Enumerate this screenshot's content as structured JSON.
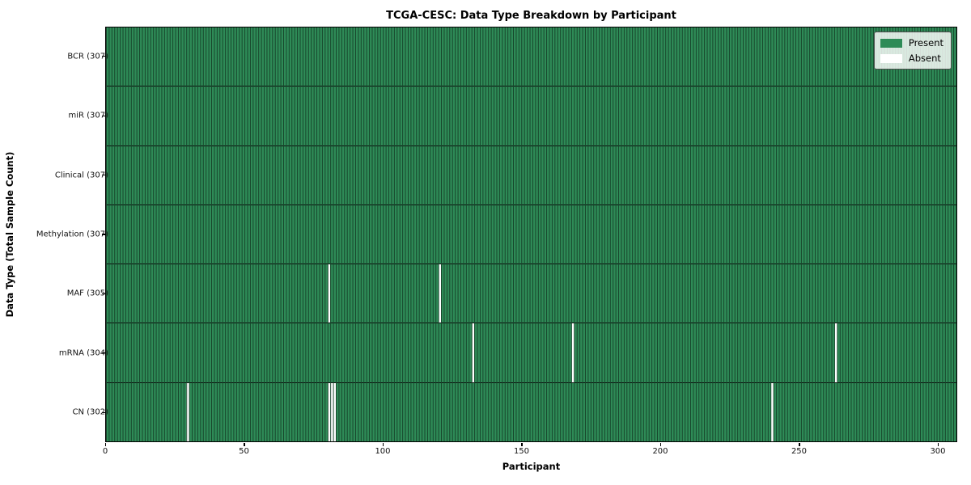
{
  "title": "TCGA-CESC: Data Type Breakdown by Participant",
  "colors": {
    "present": "#2e8b57",
    "absent": "#ffffff",
    "cell_edge": "#17452b",
    "row_divider": "#0a0a0a",
    "axis": "#000000"
  },
  "chart_data": {
    "type": "heatmap",
    "title": "TCGA-CESC: Data Type Breakdown by Participant",
    "xlabel": "Participant",
    "ylabel": "Data Type (Total Sample Count)",
    "x_range": [
      0,
      307
    ],
    "x_ticks": [
      0,
      50,
      100,
      150,
      200,
      250,
      300
    ],
    "n_participants": 307,
    "grid": false,
    "legend_position": "upper right",
    "legend_items": [
      {
        "label": "Present",
        "color": "#2e8b57"
      },
      {
        "label": "Absent",
        "color": "#ffffff"
      }
    ],
    "rows": [
      {
        "data_type": "BCR",
        "label": "BCR (307)",
        "present_count": 307,
        "absent_participants": []
      },
      {
        "data_type": "miR",
        "label": "miR (307)",
        "present_count": 307,
        "absent_participants": []
      },
      {
        "data_type": "Clinical",
        "label": "Clinical (307)",
        "present_count": 307,
        "absent_participants": []
      },
      {
        "data_type": "Methylation",
        "label": "Methylation (307)",
        "present_count": 307,
        "absent_participants": []
      },
      {
        "data_type": "MAF",
        "label": "MAF (305)",
        "present_count": 305,
        "absent_participants": [
          80,
          120
        ]
      },
      {
        "data_type": "mRNA",
        "label": "mRNA (304)",
        "present_count": 304,
        "absent_participants": [
          132,
          168,
          263
        ]
      },
      {
        "data_type": "CN",
        "label": "CN (302)",
        "present_count": 302,
        "absent_participants": [
          29,
          80,
          81,
          82,
          240
        ]
      }
    ]
  }
}
